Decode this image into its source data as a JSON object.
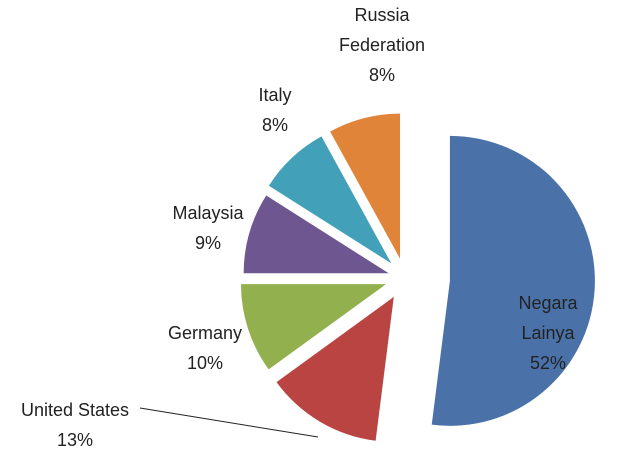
{
  "chart_data": {
    "type": "pie",
    "categories": [
      "Negara Lainya",
      "United States",
      "Germany",
      "Malaysia",
      "Italy",
      "Russia Federation"
    ],
    "values": [
      52,
      13,
      10,
      9,
      8,
      8
    ],
    "value_labels": [
      "52%",
      "13%",
      "10%",
      "9%",
      "8%",
      "8%"
    ],
    "colors": [
      "#4a72a8",
      "#b94442",
      "#93b04f",
      "#6e5690",
      "#42a0b8",
      "#e0843a"
    ]
  }
}
